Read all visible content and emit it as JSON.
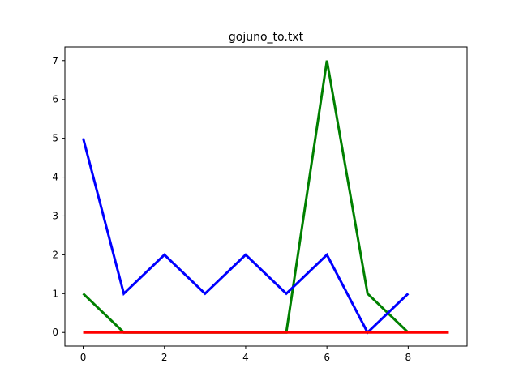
{
  "chart_data": {
    "type": "line",
    "title": "gojuno_to.txt",
    "xlabel": "",
    "ylabel": "",
    "xlim": [
      -0.45,
      9.45
    ],
    "ylim": [
      -0.35,
      7.35
    ],
    "x_ticks": [
      0,
      2,
      4,
      6,
      8
    ],
    "y_ticks": [
      0,
      1,
      2,
      3,
      4,
      5,
      6,
      7
    ],
    "grid": false,
    "series": [
      {
        "color": "#008000",
        "x": [
          0,
          1,
          2,
          3,
          4,
          5,
          6,
          7,
          8
        ],
        "values": [
          1,
          0,
          0,
          0,
          0,
          0,
          7,
          1,
          0
        ]
      },
      {
        "color": "#0000ff",
        "x": [
          0,
          1,
          2,
          3,
          4,
          5,
          6,
          7,
          8
        ],
        "values": [
          5,
          1,
          2,
          1,
          2,
          1,
          2,
          0,
          1
        ]
      },
      {
        "color": "#ff0000",
        "x": [
          0,
          1,
          2,
          3,
          4,
          5,
          6,
          7,
          8,
          9
        ],
        "values": [
          0,
          0,
          0,
          0,
          0,
          0,
          0,
          0,
          0,
          0
        ]
      }
    ]
  }
}
